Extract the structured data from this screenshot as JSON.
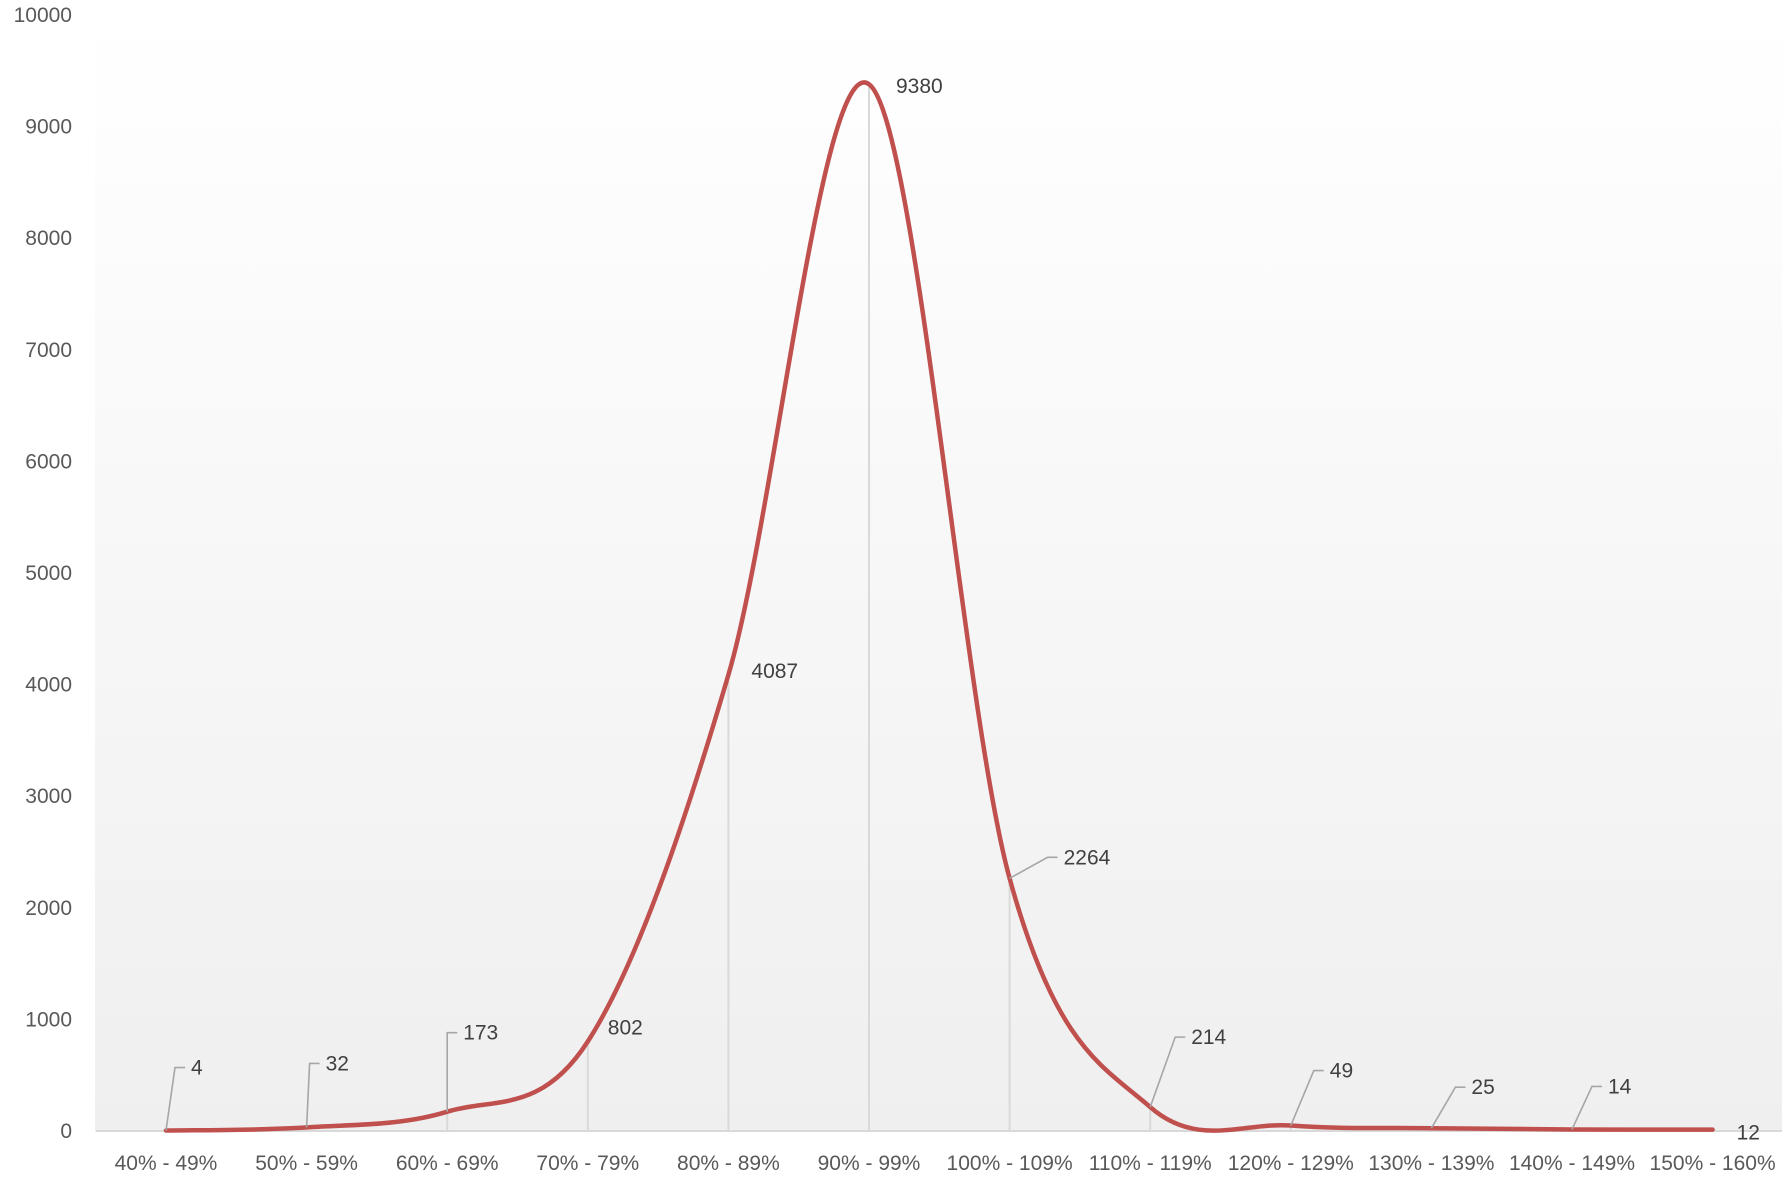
{
  "chart_data": {
    "type": "line",
    "smooth": true,
    "title": "",
    "xlabel": "",
    "ylabel": "",
    "categories": [
      "40% - 49%",
      "50% - 59%",
      "60% - 69%",
      "70% - 79%",
      "80% - 89%",
      "90% - 99%",
      "100% - 109%",
      "110% - 119%",
      "120% - 129%",
      "130% - 139%",
      "140% - 149%",
      "150% - 160%"
    ],
    "series": [
      {
        "values": [
          4,
          32,
          173,
          802,
          4087,
          9380,
          2264,
          214,
          49,
          25,
          14,
          12
        ],
        "labels": [
          "4",
          "32",
          "173",
          "802",
          "4087",
          "9380",
          "2264",
          "214",
          "49",
          "25",
          "14",
          "12"
        ],
        "color": "#c0504d"
      }
    ],
    "ylim": [
      0,
      10000
    ],
    "yticks": [
      "0",
      "1000",
      "2000",
      "3000",
      "4000",
      "5000",
      "6000",
      "7000",
      "8000",
      "9000",
      "10000"
    ],
    "drop_lines": true,
    "grid": false,
    "legend": "none",
    "background": {
      "top": "#ffffff",
      "bottom": "#efefef"
    }
  }
}
